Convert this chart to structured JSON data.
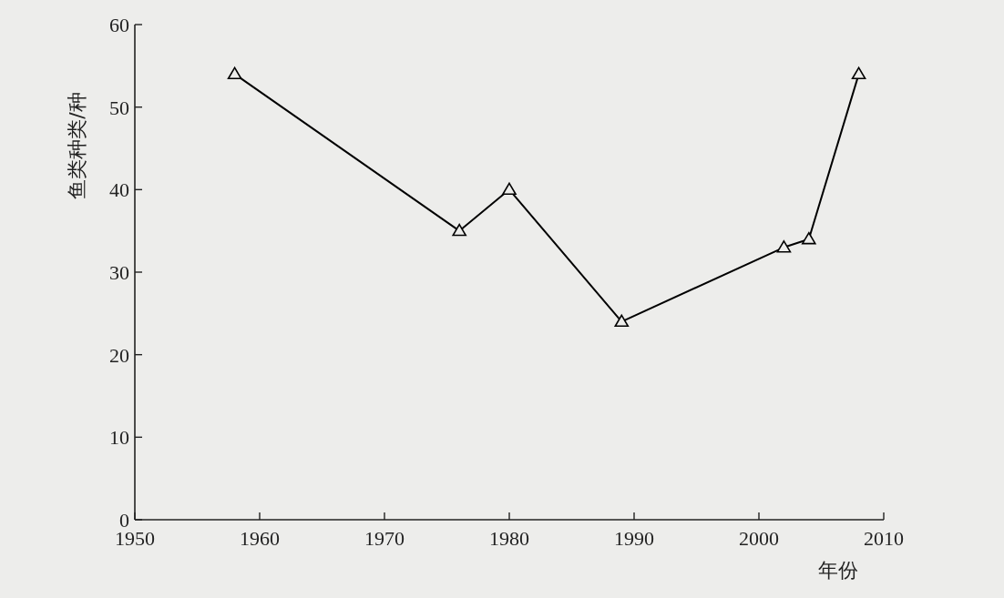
{
  "chart_data": {
    "type": "line",
    "xlabel": "年份",
    "ylabel": "鱼类种类/种",
    "x": [
      1958,
      1976,
      1980,
      1989,
      2002,
      2004,
      2008
    ],
    "values": [
      54,
      35,
      40,
      24,
      33,
      34,
      54
    ],
    "color": "#000000",
    "marker": "triangle",
    "line_style": "solid",
    "xlim": [
      1950,
      2010
    ],
    "xticks": [
      1950,
      1960,
      1970,
      1980,
      1990,
      2000,
      2010
    ],
    "ylim": [
      0,
      60
    ],
    "yticks": [
      0,
      10,
      20,
      30,
      40,
      50,
      60
    ]
  }
}
